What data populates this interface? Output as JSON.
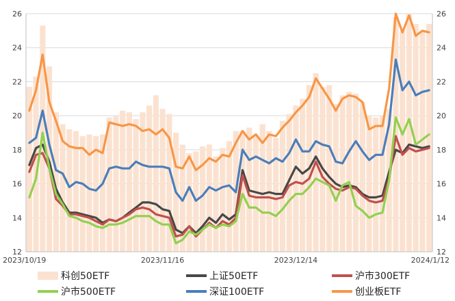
{
  "chart_data": {
    "type": "line",
    "title": "",
    "xlabel": "",
    "ylabel": "",
    "ylim": [
      12,
      26
    ],
    "yticks": [
      12,
      14,
      16,
      18,
      20,
      22,
      24,
      26
    ],
    "xtick_labels": [
      {
        "date": "2023/10/19",
        "index": 0
      },
      {
        "date": "2023/11/16",
        "index": 20
      },
      {
        "date": "2023/12/14",
        "index": 40
      },
      {
        "date": "2024/1/12",
        "index": 60
      }
    ],
    "grid": "horizontal",
    "legend_position": "bottom",
    "n_points": 61,
    "series": [
      {
        "name": "科创50ETF",
        "kind": "bar",
        "color": "#fbe2d0",
        "values": [
          21.7,
          22.3,
          25.3,
          22.9,
          20.2,
          19.5,
          19.2,
          19.1,
          18.8,
          18.9,
          18.8,
          18.9,
          19.9,
          20.0,
          20.3,
          20.2,
          19.8,
          20.2,
          20.6,
          21.2,
          20.4,
          20.1,
          19.0,
          18.3,
          17.8,
          17.9,
          18.2,
          18.3,
          17.6,
          18.1,
          18.5,
          19.1,
          19.1,
          19.3,
          18.9,
          19.5,
          19.1,
          18.7,
          19.7,
          20.1,
          20.6,
          21.0,
          21.8,
          22.5,
          21.7,
          21.8,
          20.7,
          21.2,
          21.4,
          21.3,
          20.8,
          20.0,
          19.9,
          20.0,
          20.4,
          25.8,
          25.0,
          26.0,
          25.4,
          25.0,
          25.4
        ]
      },
      {
        "name": "上证50ETF",
        "kind": "line",
        "color": "#474747",
        "values": [
          17.1,
          18.1,
          18.3,
          17.3,
          15.7,
          14.9,
          14.3,
          14.3,
          14.2,
          14.1,
          14.0,
          13.7,
          13.9,
          13.8,
          14.0,
          14.3,
          14.6,
          14.9,
          14.9,
          14.8,
          14.5,
          14.4,
          13.3,
          13.1,
          13.5,
          13.1,
          13.5,
          14.0,
          13.7,
          14.2,
          13.9,
          14.2,
          16.8,
          15.6,
          15.5,
          15.4,
          15.5,
          15.4,
          15.4,
          16.2,
          17.0,
          16.6,
          16.9,
          17.6,
          16.9,
          16.4,
          16.0,
          15.8,
          15.9,
          15.8,
          15.4,
          15.2,
          15.2,
          15.3,
          16.7,
          18.0,
          17.8,
          18.3,
          18.2,
          18.1,
          18.2
        ]
      },
      {
        "name": "沪市300ETF",
        "kind": "line",
        "color": "#c0504d",
        "values": [
          16.7,
          17.7,
          17.8,
          16.9,
          15.1,
          14.7,
          14.2,
          14.2,
          14.1,
          14.0,
          13.8,
          13.6,
          13.9,
          13.8,
          14.0,
          14.2,
          14.5,
          14.6,
          14.5,
          14.2,
          14.1,
          14.0,
          12.9,
          13.0,
          13.5,
          12.9,
          13.3,
          13.7,
          13.4,
          13.8,
          13.6,
          14.0,
          16.5,
          15.3,
          15.2,
          15.2,
          15.2,
          15.1,
          15.2,
          15.9,
          16.1,
          16.0,
          16.3,
          17.3,
          16.4,
          16.0,
          15.7,
          15.6,
          15.8,
          15.7,
          15.3,
          15.0,
          14.9,
          15.0,
          16.3,
          18.8,
          17.7,
          18.1,
          17.9,
          18.0,
          18.1
        ]
      },
      {
        "name": "沪市500ETF",
        "kind": "line",
        "color": "#92d050",
        "values": [
          15.2,
          16.3,
          19.0,
          16.9,
          15.4,
          14.8,
          14.1,
          14.0,
          13.8,
          13.7,
          13.5,
          13.4,
          13.6,
          13.6,
          13.7,
          13.9,
          14.1,
          14.1,
          14.1,
          13.8,
          13.6,
          13.6,
          12.5,
          12.7,
          13.2,
          13.0,
          13.3,
          13.6,
          13.4,
          13.6,
          13.5,
          13.8,
          15.4,
          14.6,
          14.6,
          14.3,
          14.3,
          14.1,
          14.5,
          15.0,
          15.4,
          15.4,
          15.8,
          16.3,
          16.1,
          15.9,
          15.0,
          15.9,
          16.1,
          14.7,
          14.4,
          14.0,
          14.2,
          14.3,
          16.2,
          19.9,
          18.9,
          19.8,
          18.3,
          18.6,
          18.9
        ]
      },
      {
        "name": "深证100ETF",
        "kind": "line",
        "color": "#4a7ebb",
        "values": [
          18.4,
          18.7,
          20.3,
          18.3,
          16.8,
          16.6,
          15.8,
          16.1,
          16.0,
          15.7,
          15.6,
          16.0,
          16.9,
          17.0,
          16.9,
          16.9,
          17.3,
          17.1,
          17.0,
          17.0,
          17.0,
          16.9,
          15.5,
          15.0,
          15.8,
          15.0,
          15.3,
          15.8,
          15.6,
          15.8,
          15.9,
          15.5,
          18.0,
          17.4,
          17.6,
          17.4,
          17.2,
          17.5,
          17.3,
          17.8,
          18.6,
          17.9,
          17.9,
          18.5,
          18.3,
          18.2,
          17.3,
          17.2,
          17.9,
          18.5,
          17.9,
          17.4,
          17.7,
          17.7,
          19.5,
          23.3,
          21.5,
          22.0,
          21.2,
          21.4,
          21.5
        ]
      },
      {
        "name": "创业板ETF",
        "kind": "line",
        "color": "#f79646",
        "values": [
          20.3,
          21.5,
          23.6,
          20.8,
          19.7,
          18.5,
          18.2,
          18.1,
          18.1,
          17.7,
          18.0,
          17.8,
          19.6,
          19.5,
          19.4,
          19.5,
          19.4,
          19.1,
          19.2,
          18.9,
          19.2,
          18.7,
          17.0,
          16.9,
          17.6,
          16.8,
          17.1,
          17.5,
          17.3,
          17.7,
          17.6,
          18.4,
          19.1,
          18.6,
          18.9,
          18.4,
          18.9,
          18.8,
          19.3,
          19.7,
          20.2,
          20.6,
          21.1,
          22.2,
          21.6,
          21.0,
          20.3,
          21.0,
          21.2,
          21.1,
          20.8,
          19.2,
          19.4,
          19.4,
          21.6,
          26.0,
          24.9,
          25.9,
          24.7,
          25.0,
          24.9
        ]
      }
    ]
  }
}
